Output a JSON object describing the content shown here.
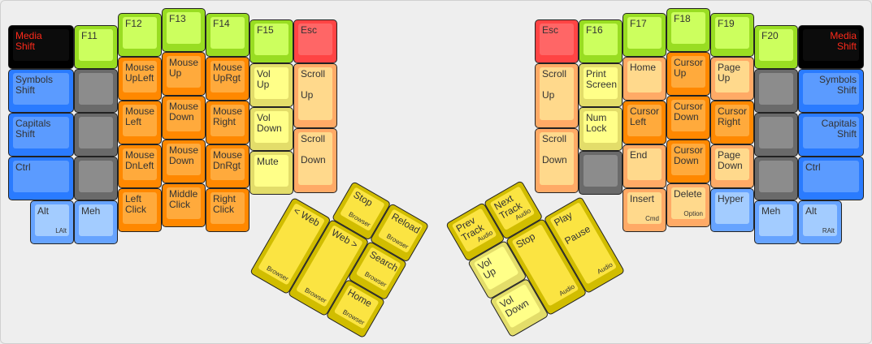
{
  "palette": {
    "green": [
      "#99dd22",
      "#ccff5e"
    ],
    "orange": [
      "#ff8800",
      "#ffaa3c"
    ],
    "peach": [
      "#ffaa66",
      "#ffd98c"
    ],
    "lightyellow": [
      "#e3dd6a",
      "#ffff88"
    ],
    "yellow": [
      "#d1bd00",
      "#fbe442"
    ],
    "red": [
      "#ff4444",
      "#ff6666"
    ],
    "blue": [
      "#2a7bff",
      "#5b9bff"
    ],
    "lightblue": [
      "#66a3ff",
      "#a3ccff"
    ],
    "gray": [
      "#6a6a6a",
      "#8c8c8c"
    ],
    "black": [
      "#000000",
      "#0c0c0c"
    ],
    "media_text": "#ff2a1a"
  },
  "left_hand": [
    {
      "label": "Media\nShift",
      "color": "black"
    },
    {
      "label": "Symbols\nShift",
      "color": "blue"
    },
    {
      "label": "Capitals\nShift",
      "color": "blue"
    },
    {
      "label": "Ctrl",
      "color": "blue"
    },
    {
      "label": "Alt",
      "sub": "LAlt",
      "color": "lightblue"
    },
    {
      "label": "F11",
      "color": "green"
    },
    {
      "label": "",
      "color": "gray"
    },
    {
      "label": "",
      "color": "gray"
    },
    {
      "label": "",
      "color": "gray"
    },
    {
      "label": "Meh",
      "color": "lightblue"
    },
    {
      "label": "F12",
      "color": "green"
    },
    {
      "label": "Mouse\nUpLeft",
      "color": "orange"
    },
    {
      "label": "Mouse\nLeft",
      "color": "orange"
    },
    {
      "label": "Mouse\nDnLeft",
      "color": "orange"
    },
    {
      "label": "Left\nClick",
      "color": "orange"
    },
    {
      "label": "F13",
      "color": "green"
    },
    {
      "label": "Mouse\nUp",
      "color": "orange"
    },
    {
      "label": "Mouse\nDown",
      "color": "orange"
    },
    {
      "label": "Mouse\nDown",
      "color": "orange"
    },
    {
      "label": "Middle\nClick",
      "color": "orange"
    },
    {
      "label": "F14",
      "color": "green"
    },
    {
      "label": "Mouse\nUpRgt",
      "color": "orange"
    },
    {
      "label": "Mouse\nRight",
      "color": "orange"
    },
    {
      "label": "Mouse\nDnRgt",
      "color": "orange"
    },
    {
      "label": "Right\nClick",
      "color": "orange"
    },
    {
      "label": "F15",
      "color": "green"
    },
    {
      "label": "Vol\nUp",
      "color": "lightyellow"
    },
    {
      "label": "Vol\nDown",
      "color": "lightyellow"
    },
    {
      "label": "Mute",
      "color": "lightyellow"
    },
    {
      "label": "Esc",
      "color": "red"
    },
    {
      "label": "Scroll\n\nUp",
      "color": "peach"
    },
    {
      "label": "Scroll\n\nDown",
      "color": "peach"
    }
  ],
  "left_thumb": [
    {
      "label": "Stop",
      "sub": "Browser",
      "color": "yellow"
    },
    {
      "label": "Reload",
      "sub": "Browser",
      "color": "yellow"
    },
    {
      "label": "< Web",
      "sub": "Browser",
      "color": "yellow"
    },
    {
      "label": "Web >",
      "sub": "Browser",
      "color": "yellow"
    },
    {
      "label": "Search",
      "sub": "Browser",
      "color": "yellow"
    },
    {
      "label": "Home",
      "sub": "Browser",
      "color": "yellow"
    }
  ],
  "right_hand": [
    {
      "label": "Esc",
      "color": "red"
    },
    {
      "label": "Scroll\n\nUp",
      "color": "peach"
    },
    {
      "label": "Scroll\n\nDown",
      "color": "peach"
    },
    {
      "label": "F16",
      "color": "green"
    },
    {
      "label": "Print\nScreen",
      "color": "lightyellow"
    },
    {
      "label": "Num\nLock",
      "color": "lightyellow"
    },
    {
      "label": "",
      "color": "gray"
    },
    {
      "label": "F17",
      "color": "green"
    },
    {
      "label": "Home",
      "color": "peach"
    },
    {
      "label": "Cursor\nLeft",
      "color": "orange"
    },
    {
      "label": "End",
      "color": "peach"
    },
    {
      "label": "Insert",
      "sub": "Cmd",
      "color": "peach"
    },
    {
      "label": "F18",
      "color": "green"
    },
    {
      "label": "Cursor\nUp",
      "color": "orange"
    },
    {
      "label": "Cursor\nDown",
      "color": "orange"
    },
    {
      "label": "Cursor\nDown",
      "color": "orange"
    },
    {
      "label": "Delete",
      "sub": "Option",
      "color": "peach"
    },
    {
      "label": "F19",
      "color": "green"
    },
    {
      "label": "Page\nUp",
      "color": "peach"
    },
    {
      "label": "Cursor\nRight",
      "color": "orange"
    },
    {
      "label": "Page\nDown",
      "color": "peach"
    },
    {
      "label": "Hyper",
      "color": "lightblue"
    },
    {
      "label": "F20",
      "color": "green"
    },
    {
      "label": "",
      "color": "gray"
    },
    {
      "label": "",
      "color": "gray"
    },
    {
      "label": "",
      "color": "gray"
    },
    {
      "label": "Meh",
      "color": "lightblue"
    },
    {
      "label": "Media\nShift",
      "color": "black"
    },
    {
      "label": "Symbols\nShift",
      "color": "blue"
    },
    {
      "label": "Capitals\nShift",
      "color": "blue"
    },
    {
      "label": "Ctrl",
      "color": "blue"
    },
    {
      "label": "Alt",
      "sub": "RAlt",
      "color": "lightblue"
    }
  ],
  "right_thumb": [
    {
      "label": "Prev\nTrack",
      "sub": "Audio",
      "color": "yellow"
    },
    {
      "label": "Next\nTrack",
      "sub": "Audio",
      "color": "yellow"
    },
    {
      "label": "Vol\nUp",
      "color": "lightyellow"
    },
    {
      "label": "Stop",
      "sub": "Audio",
      "color": "yellow"
    },
    {
      "label": "Play\n\nPause",
      "sub": "Audio",
      "color": "yellow"
    },
    {
      "label": "Vol\nDown",
      "color": "lightyellow"
    }
  ]
}
